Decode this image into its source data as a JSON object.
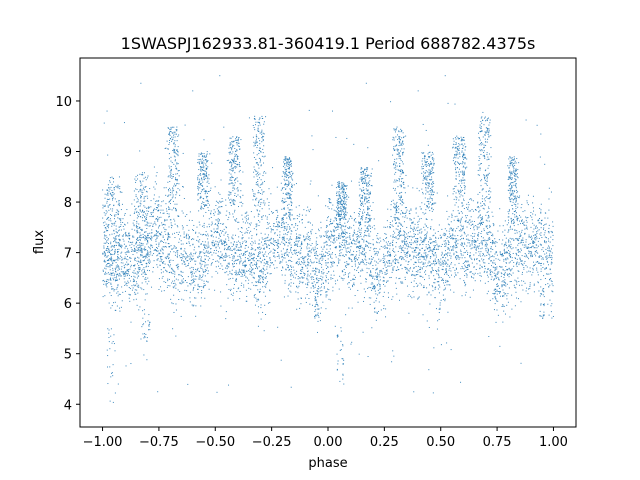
{
  "chart_data": {
    "type": "scatter",
    "title": "1SWASPJ162933.81-360419.1 Period 688782.4375s",
    "xlabel": "phase",
    "ylabel": "flux",
    "xlim": [
      -1.1,
      1.1
    ],
    "ylim": [
      3.55,
      10.85
    ],
    "xticks": [
      -1.0,
      -0.75,
      -0.5,
      -0.25,
      0.0,
      0.25,
      0.5,
      0.75,
      1.0
    ],
    "xtick_labels": [
      "−1.00",
      "−0.75",
      "−0.50",
      "−0.25",
      "0.00",
      "0.25",
      "0.50",
      "0.75",
      "1.00"
    ],
    "yticks": [
      4,
      5,
      6,
      7,
      8,
      9,
      10
    ],
    "ytick_labels": [
      "4",
      "5",
      "6",
      "7",
      "8",
      "9",
      "10"
    ],
    "grid": false,
    "marker_color": "#1f77b4",
    "series": [
      {
        "name": "",
        "phase_range": [
          -1.0,
          1.0
        ],
        "baseline_flux": 7.0,
        "baseline_spread": 0.45,
        "flare_segments": [
          {
            "x": [
              -0.99,
              -0.92
            ],
            "y": [
              6.3,
              8.5
            ]
          },
          {
            "x": [
              -0.86,
              -0.8
            ],
            "y": [
              6.5,
              8.6
            ]
          },
          {
            "x": [
              -0.71,
              -0.66
            ],
            "y": [
              7.6,
              9.5
            ]
          },
          {
            "x": [
              -0.58,
              -0.53
            ],
            "y": [
              7.8,
              9.0
            ]
          },
          {
            "x": [
              -0.44,
              -0.39
            ],
            "y": [
              7.9,
              9.3
            ]
          },
          {
            "x": [
              -0.33,
              -0.28
            ],
            "y": [
              7.5,
              9.7
            ]
          },
          {
            "x": [
              -0.2,
              -0.16
            ],
            "y": [
              7.6,
              8.9
            ]
          },
          {
            "x": [
              0.04,
              0.08
            ],
            "y": [
              7.5,
              8.4
            ]
          },
          {
            "x": [
              0.14,
              0.19
            ],
            "y": [
              7.5,
              8.7
            ]
          },
          {
            "x": [
              0.29,
              0.34
            ],
            "y": [
              7.6,
              9.5
            ]
          },
          {
            "x": [
              0.42,
              0.47
            ],
            "y": [
              7.8,
              9.0
            ]
          },
          {
            "x": [
              0.56,
              0.61
            ],
            "y": [
              7.9,
              9.3
            ]
          },
          {
            "x": [
              0.67,
              0.72
            ],
            "y": [
              7.5,
              9.7
            ]
          },
          {
            "x": [
              0.8,
              0.84
            ],
            "y": [
              7.6,
              8.9
            ]
          }
        ],
        "low_dips": [
          {
            "x": [
              -0.98,
              -0.94
            ],
            "y": [
              3.9,
              5.5
            ]
          },
          {
            "x": [
              -0.83,
              -0.79
            ],
            "y": [
              5.2,
              5.8
            ]
          },
          {
            "x": [
              -0.06,
              -0.04
            ],
            "y": [
              5.7,
              6.3
            ]
          },
          {
            "x": [
              0.04,
              0.07
            ],
            "y": [
              4.4,
              5.6
            ]
          },
          {
            "x": [
              0.94,
              0.96
            ],
            "y": [
              5.7,
              6.3
            ]
          }
        ],
        "outliers": [
          {
            "x": -0.83,
            "y": 10.35
          },
          {
            "x": -0.48,
            "y": 10.5
          },
          {
            "x": -0.98,
            "y": 9.8
          },
          {
            "x": 0.17,
            "y": 10.35
          },
          {
            "x": 0.52,
            "y": 10.5
          },
          {
            "x": 0.02,
            "y": 9.8
          },
          {
            "x": -0.93,
            "y": 4.4
          },
          {
            "x": 0.07,
            "y": 4.4
          },
          {
            "x": -0.6,
            "y": 10.2
          },
          {
            "x": 0.4,
            "y": 10.2
          }
        ]
      }
    ]
  }
}
